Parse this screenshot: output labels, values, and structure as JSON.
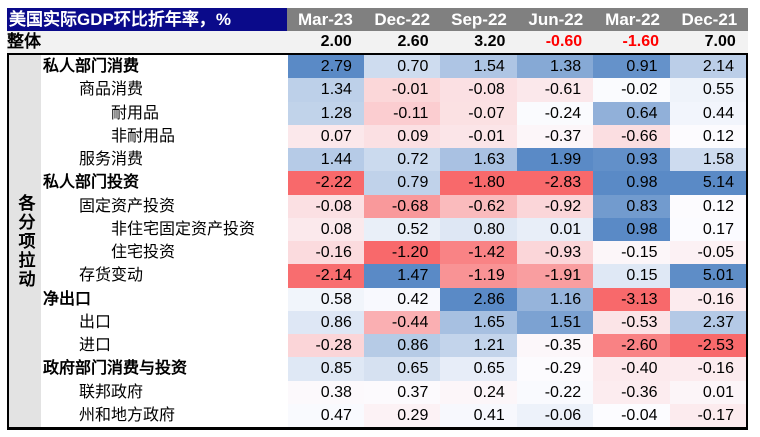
{
  "chart_data": {
    "type": "heatmap",
    "title": "美国实际GDP环比折年率，%",
    "columns": [
      "Mar-23",
      "Dec-22",
      "Sep-22",
      "Jun-22",
      "Mar-22",
      "Dec-21"
    ],
    "total": {
      "label": "整体",
      "values": [
        "2.00",
        "2.60",
        "3.20",
        "-0.60",
        "-1.60",
        "7.00"
      ]
    },
    "group_label": "各分项拉动",
    "rows": [
      {
        "label": "私人部门消费",
        "level": 1,
        "values": [
          "2.79",
          "0.70",
          "1.54",
          "1.38",
          "0.91",
          "2.14"
        ]
      },
      {
        "label": "商品消费",
        "level": 2,
        "values": [
          "1.34",
          "-0.01",
          "-0.08",
          "-0.61",
          "-0.02",
          "0.55"
        ]
      },
      {
        "label": "耐用品",
        "level": 3,
        "values": [
          "1.28",
          "-0.11",
          "-0.07",
          "-0.24",
          "0.64",
          "0.44"
        ]
      },
      {
        "label": "非耐用品",
        "level": 3,
        "values": [
          "0.07",
          "0.09",
          "-0.01",
          "-0.37",
          "-0.66",
          "0.12"
        ]
      },
      {
        "label": "服务消费",
        "level": 2,
        "values": [
          "1.44",
          "0.72",
          "1.63",
          "1.99",
          "0.93",
          "1.58"
        ]
      },
      {
        "label": "私人部门投资",
        "level": 1,
        "values": [
          "-2.22",
          "0.79",
          "-1.80",
          "-2.83",
          "0.98",
          "5.14"
        ]
      },
      {
        "label": "固定资产投资",
        "level": 2,
        "values": [
          "-0.08",
          "-0.68",
          "-0.62",
          "-0.92",
          "0.83",
          "0.12"
        ]
      },
      {
        "label": "非住宅固定资产投资",
        "level": 3,
        "values": [
          "0.08",
          "0.52",
          "0.80",
          "0.01",
          "0.98",
          "0.17"
        ]
      },
      {
        "label": "住宅投资",
        "level": 3,
        "values": [
          "-0.16",
          "-1.20",
          "-1.42",
          "-0.93",
          "-0.15",
          "-0.05"
        ]
      },
      {
        "label": "存货变动",
        "level": 2,
        "values": [
          "-2.14",
          "1.47",
          "-1.19",
          "-1.91",
          "0.15",
          "5.01"
        ]
      },
      {
        "label": "净出口",
        "level": 1,
        "values": [
          "0.58",
          "0.42",
          "2.86",
          "1.16",
          "-3.13",
          "-0.16"
        ]
      },
      {
        "label": "出口",
        "level": 2,
        "values": [
          "0.86",
          "-0.44",
          "1.65",
          "1.51",
          "-0.53",
          "2.37"
        ]
      },
      {
        "label": "进口",
        "level": 2,
        "values": [
          "-0.28",
          "0.86",
          "1.21",
          "-0.35",
          "-2.60",
          "-2.53"
        ]
      },
      {
        "label": "政府部门消费与投资",
        "level": 1,
        "values": [
          "0.85",
          "0.65",
          "0.65",
          "-0.29",
          "-0.40",
          "-0.16"
        ]
      },
      {
        "label": "联邦政府",
        "level": 2,
        "values": [
          "0.38",
          "0.37",
          "0.24",
          "-0.22",
          "-0.36",
          "0.01"
        ]
      },
      {
        "label": "州和地方政府",
        "level": 2,
        "values": [
          "0.47",
          "0.29",
          "0.41",
          "-0.06",
          "-0.04",
          "-0.17"
        ]
      }
    ],
    "colors": {
      "high": "#5a8ac6",
      "mid": "#fcfcff",
      "low": "#f8696b",
      "negative_total": "#ff0000"
    }
  }
}
